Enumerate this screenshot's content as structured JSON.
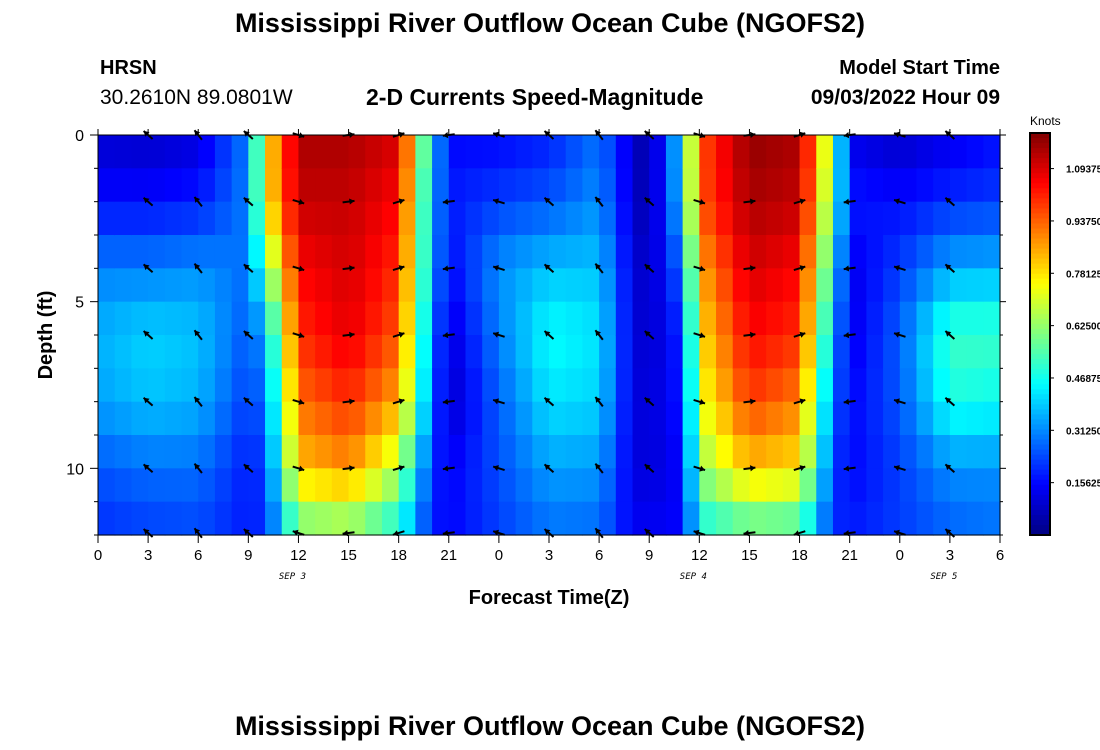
{
  "page": {
    "title_top": "Mississippi River Outflow Ocean Cube (NGOFS2)",
    "title_bottom": "Mississippi River Outflow Ocean Cube (NGOFS2)",
    "station": "HRSN",
    "coords": "30.2610N  89.0801W",
    "subtitle": "2-D Currents Speed-Magnitude",
    "model_label": "Model Start Time",
    "model_time": "09/03/2022 Hour 09"
  },
  "chart_data": {
    "type": "heatmap",
    "title": "2-D Currents Speed-Magnitude",
    "xlabel": "Forecast Time(Z)",
    "ylabel": "Depth (ft)",
    "x_range_hours": [
      0,
      54
    ],
    "y_range_ft": [
      0,
      12
    ],
    "x_ticks": [
      {
        "h": 0,
        "label": "0"
      },
      {
        "h": 3,
        "label": "3"
      },
      {
        "h": 6,
        "label": "6"
      },
      {
        "h": 9,
        "label": "9"
      },
      {
        "h": 12,
        "label": "12"
      },
      {
        "h": 15,
        "label": "15"
      },
      {
        "h": 18,
        "label": "18"
      },
      {
        "h": 21,
        "label": "21"
      },
      {
        "h": 24,
        "label": "0"
      },
      {
        "h": 27,
        "label": "3"
      },
      {
        "h": 30,
        "label": "6"
      },
      {
        "h": 33,
        "label": "9"
      },
      {
        "h": 36,
        "label": "12"
      },
      {
        "h": 39,
        "label": "15"
      },
      {
        "h": 42,
        "label": "18"
      },
      {
        "h": 45,
        "label": "21"
      },
      {
        "h": 48,
        "label": "0"
      },
      {
        "h": 51,
        "label": "3"
      },
      {
        "h": 54,
        "label": "6"
      }
    ],
    "y_ticks": [
      {
        "d": 0,
        "label": "0"
      },
      {
        "d": 5,
        "label": "5"
      },
      {
        "d": 10,
        "label": "10"
      }
    ],
    "date_labels": [
      {
        "h": 12,
        "label": "SEP 3"
      },
      {
        "h": 36,
        "label": "SEP 4"
      },
      {
        "h": 51,
        "label": "SEP 5"
      }
    ],
    "colorbar": {
      "label": "Knots",
      "min": 0,
      "max": 1.2,
      "ticks": [
        "1.09375",
        "0.93750",
        "0.78125",
        "0.62500",
        "0.46875",
        "0.31250",
        "0.15625"
      ],
      "tick_values": [
        1.09375,
        0.9375,
        0.78125,
        0.625,
        0.46875,
        0.3125,
        0.15625
      ]
    },
    "time_hours": [
      0,
      3,
      6,
      9,
      10,
      12,
      15,
      18,
      20,
      21,
      24,
      27,
      30,
      32,
      33,
      35,
      36,
      39,
      42,
      44,
      45,
      48,
      51,
      54
    ],
    "speed_knots_by_depth": {
      "depths_ft": [
        0,
        2,
        4,
        6,
        8,
        10,
        12
      ],
      "rows": [
        [
          0.09,
          0.08,
          0.1,
          0.3,
          0.75,
          1.15,
          1.15,
          1.1,
          0.4,
          0.15,
          0.15,
          0.18,
          0.28,
          0.1,
          0.03,
          0.42,
          0.95,
          1.18,
          1.15,
          0.6,
          0.12,
          0.08,
          0.12,
          0.16
        ],
        [
          0.16,
          0.16,
          0.18,
          0.3,
          0.75,
          1.12,
          1.12,
          1.05,
          0.35,
          0.18,
          0.22,
          0.25,
          0.32,
          0.1,
          0.04,
          0.4,
          0.95,
          1.15,
          1.12,
          0.55,
          0.18,
          0.16,
          0.2,
          0.22
        ],
        [
          0.3,
          0.3,
          0.32,
          0.28,
          0.55,
          1.05,
          1.1,
          1.0,
          0.35,
          0.15,
          0.32,
          0.38,
          0.38,
          0.12,
          0.07,
          0.28,
          0.85,
          1.1,
          1.05,
          0.45,
          0.12,
          0.22,
          0.35,
          0.36
        ],
        [
          0.36,
          0.4,
          0.38,
          0.25,
          0.35,
          1.0,
          1.08,
          0.95,
          0.3,
          0.1,
          0.3,
          0.46,
          0.42,
          0.12,
          0.08,
          0.2,
          0.78,
          1.05,
          1.0,
          0.35,
          0.12,
          0.26,
          0.52,
          0.52
        ],
        [
          0.34,
          0.38,
          0.36,
          0.22,
          0.28,
          0.92,
          1.0,
          0.85,
          0.28,
          0.08,
          0.26,
          0.42,
          0.4,
          0.12,
          0.1,
          0.18,
          0.72,
          0.98,
          0.9,
          0.28,
          0.15,
          0.25,
          0.48,
          0.46
        ],
        [
          0.25,
          0.28,
          0.28,
          0.18,
          0.22,
          0.82,
          0.88,
          0.66,
          0.2,
          0.14,
          0.24,
          0.34,
          0.33,
          0.12,
          0.1,
          0.15,
          0.62,
          0.82,
          0.78,
          0.22,
          0.15,
          0.22,
          0.32,
          0.32
        ],
        [
          0.2,
          0.22,
          0.23,
          0.18,
          0.2,
          0.55,
          0.58,
          0.45,
          0.18,
          0.15,
          0.22,
          0.28,
          0.27,
          0.14,
          0.14,
          0.15,
          0.45,
          0.52,
          0.5,
          0.2,
          0.18,
          0.22,
          0.26,
          0.28
        ]
      ]
    }
  }
}
